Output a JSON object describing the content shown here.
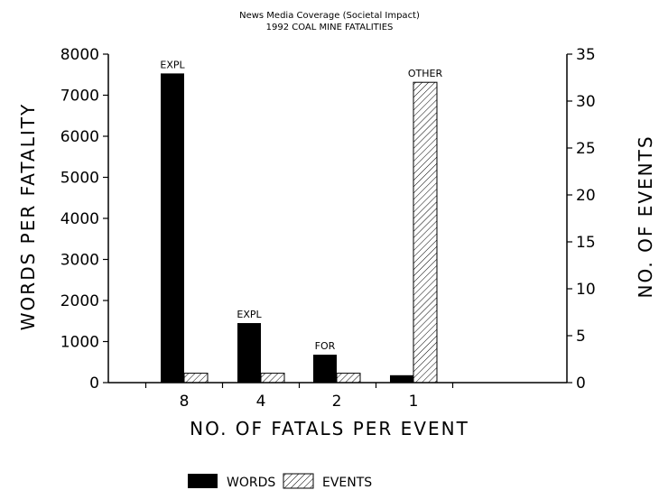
{
  "chart_data": {
    "type": "bar",
    "title": "News Media Coverage (Societal Impact)",
    "subtitle": "1992 COAL MINE FATALITIES",
    "xlabel": "NO. OF FATALS PER EVENT",
    "ylabel_left": "WORDS PER FATALITY",
    "ylabel_right": "NO. OF EVENTS",
    "categories": [
      "8",
      "4",
      "2",
      "1"
    ],
    "ylim_left": [
      0,
      8000
    ],
    "yticks_left": [
      0,
      1000,
      2000,
      3000,
      4000,
      5000,
      6000,
      7000,
      8000
    ],
    "ylim_right": [
      0,
      35
    ],
    "yticks_right": [
      0,
      5,
      10,
      15,
      20,
      25,
      30,
      35
    ],
    "series": [
      {
        "name": "WORDS",
        "axis": "left",
        "fill": "solid",
        "values": [
          7530,
          1450,
          680,
          180
        ]
      },
      {
        "name": "EVENTS",
        "axis": "right",
        "fill": "hatched",
        "values": [
          1,
          1,
          1,
          32
        ]
      }
    ],
    "bar_labels": [
      "EXPL",
      "EXPL",
      "FOR",
      "OTHER"
    ],
    "bar_label_series": [
      "WORDS",
      "WORDS",
      "WORDS",
      "EVENTS"
    ],
    "legend_position": "bottom",
    "grid": false,
    "colors": {
      "bars": "#000000",
      "background": "#ffffff"
    }
  }
}
